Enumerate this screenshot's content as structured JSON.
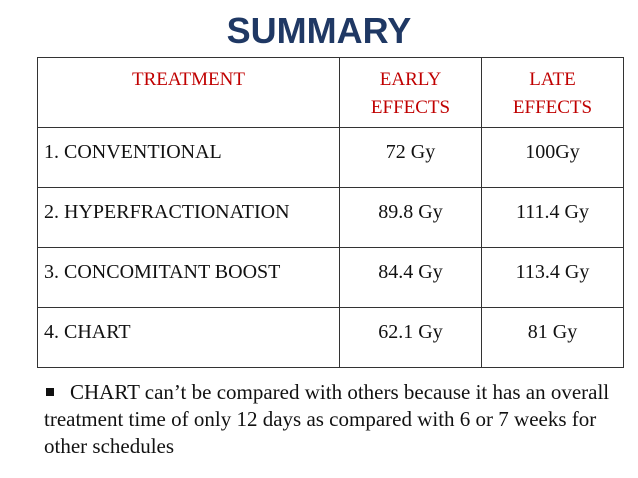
{
  "title": "SUMMARY",
  "table": {
    "headers": [
      "TREATMENT",
      "EARLY EFFECTS",
      "LATE EFFECTS"
    ],
    "rows": [
      {
        "treatment": "1. CONVENTIONAL",
        "early": "72 Gy",
        "late": "100Gy"
      },
      {
        "treatment": "2. HYPERFRACTIONATION",
        "early": "89.8 Gy",
        "late": "111.4 Gy"
      },
      {
        "treatment": "3. CONCOMITANT BOOST",
        "early": "84.4 Gy",
        "late": "113.4 Gy"
      },
      {
        "treatment": "4. CHART",
        "early": "62.1 Gy",
        "late": "81 Gy"
      }
    ]
  },
  "note": "CHART can’t be compared with others because it has an overall treatment time of only 12 days as compared with 6 or 7 weeks for other schedules",
  "colors": {
    "title": "#1f3864",
    "header": "#c00000"
  }
}
